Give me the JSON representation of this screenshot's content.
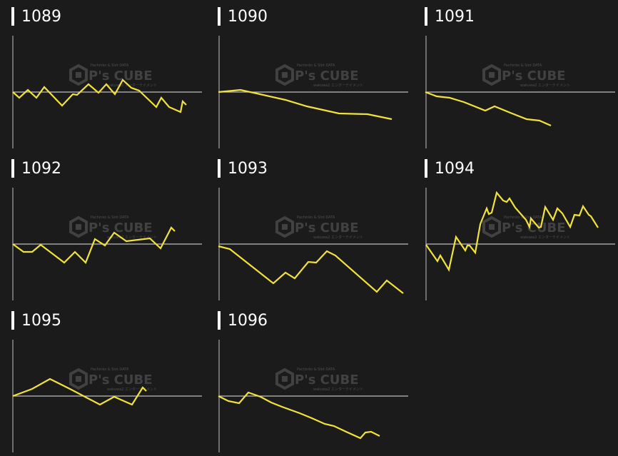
{
  "watermark": {
    "brand": "P's CUBE",
    "tagline": "Pachinko & Slot DATA",
    "sub": "wakuwa2 エンターテイメント"
  },
  "colors": {
    "background": "#1b1b1b",
    "line": "#f2e23c",
    "axis": "#8a8a8a",
    "baseline": "#bdbdbd"
  },
  "chart_data": [
    {
      "type": "line",
      "title": "1089",
      "baseline": 0,
      "points": [
        [
          18,
          0
        ],
        [
          27,
          -8
        ],
        [
          39,
          3
        ],
        [
          51,
          -8
        ],
        [
          62,
          7
        ],
        [
          87,
          -19
        ],
        [
          102,
          -3
        ],
        [
          108,
          -4
        ],
        [
          124,
          11
        ],
        [
          138,
          -1
        ],
        [
          149,
          11
        ],
        [
          161,
          -3
        ],
        [
          172,
          17
        ],
        [
          184,
          6
        ],
        [
          195,
          2
        ],
        [
          219,
          -21
        ],
        [
          226,
          -8
        ],
        [
          237,
          -21
        ],
        [
          253,
          -28
        ],
        [
          256,
          -13
        ],
        [
          261,
          -18
        ]
      ]
    },
    {
      "type": "line",
      "title": "1090",
      "baseline": 0,
      "points": [
        [
          17,
          0
        ],
        [
          48,
          3
        ],
        [
          71,
          -2
        ],
        [
          111,
          -11
        ],
        [
          141,
          -20
        ],
        [
          186,
          -30
        ],
        [
          226,
          -31
        ],
        [
          260,
          -38
        ]
      ]
    },
    {
      "type": "line",
      "title": "1091",
      "baseline": 0,
      "points": [
        [
          17,
          0
        ],
        [
          33,
          -6
        ],
        [
          51,
          -8
        ],
        [
          71,
          -14
        ],
        [
          101,
          -26
        ],
        [
          114,
          -20
        ],
        [
          136,
          -29
        ],
        [
          159,
          -38
        ],
        [
          177,
          -40
        ],
        [
          193,
          -47
        ]
      ]
    },
    {
      "type": "line",
      "title": "1092",
      "baseline": 0,
      "points": [
        [
          18,
          0
        ],
        [
          33,
          -11
        ],
        [
          45,
          -11
        ],
        [
          57,
          -1
        ],
        [
          90,
          -26
        ],
        [
          105,
          -11
        ],
        [
          120,
          -26
        ],
        [
          133,
          7
        ],
        [
          147,
          -2
        ],
        [
          160,
          16
        ],
        [
          177,
          4
        ],
        [
          210,
          8
        ],
        [
          225,
          -6
        ],
        [
          240,
          23
        ],
        [
          245,
          18
        ]
      ]
    },
    {
      "type": "line",
      "title": "1093",
      "baseline": 0,
      "points": [
        [
          17,
          -3
        ],
        [
          33,
          -7
        ],
        [
          94,
          -55
        ],
        [
          111,
          -40
        ],
        [
          124,
          -48
        ],
        [
          143,
          -25
        ],
        [
          154,
          -26
        ],
        [
          169,
          -10
        ],
        [
          181,
          -16
        ],
        [
          239,
          -67
        ],
        [
          253,
          -51
        ],
        [
          276,
          -69
        ]
      ]
    },
    {
      "type": "line",
      "title": "1094",
      "baseline": 0,
      "points": [
        [
          18,
          -1
        ],
        [
          34,
          -24
        ],
        [
          38,
          -16
        ],
        [
          50,
          -36
        ],
        [
          60,
          10
        ],
        [
          73,
          -9
        ],
        [
          76,
          -2
        ],
        [
          79,
          -2
        ],
        [
          87,
          -12
        ],
        [
          94,
          28
        ],
        [
          103,
          50
        ],
        [
          106,
          42
        ],
        [
          110,
          44
        ],
        [
          117,
          72
        ],
        [
          126,
          61
        ],
        [
          131,
          59
        ],
        [
          135,
          64
        ],
        [
          143,
          51
        ],
        [
          158,
          34
        ],
        [
          163,
          24
        ],
        [
          165,
          36
        ],
        [
          176,
          23
        ],
        [
          179,
          24
        ],
        [
          185,
          52
        ],
        [
          196,
          34
        ],
        [
          202,
          50
        ],
        [
          209,
          43
        ],
        [
          220,
          24
        ],
        [
          226,
          41
        ],
        [
          233,
          40
        ],
        [
          238,
          53
        ],
        [
          246,
          41
        ],
        [
          249,
          39
        ],
        [
          259,
          23
        ]
      ]
    },
    {
      "type": "line",
      "title": "1095",
      "baseline": 0,
      "points": [
        [
          18,
          0
        ],
        [
          45,
          10
        ],
        [
          70,
          24
        ],
        [
          100,
          9
        ],
        [
          140,
          -12
        ],
        [
          160,
          -1
        ],
        [
          185,
          -12
        ],
        [
          200,
          12
        ],
        [
          205,
          7
        ]
      ]
    },
    {
      "type": "line",
      "title": "1096",
      "baseline": 0,
      "points": [
        [
          17,
          0
        ],
        [
          31,
          -7
        ],
        [
          46,
          -10
        ],
        [
          59,
          5
        ],
        [
          76,
          -1
        ],
        [
          91,
          -9
        ],
        [
          106,
          -15
        ],
        [
          131,
          -24
        ],
        [
          148,
          -31
        ],
        [
          166,
          -39
        ],
        [
          179,
          -42
        ],
        [
          196,
          -50
        ],
        [
          216,
          -59
        ],
        [
          223,
          -51
        ],
        [
          231,
          -50
        ],
        [
          243,
          -56
        ]
      ]
    }
  ]
}
